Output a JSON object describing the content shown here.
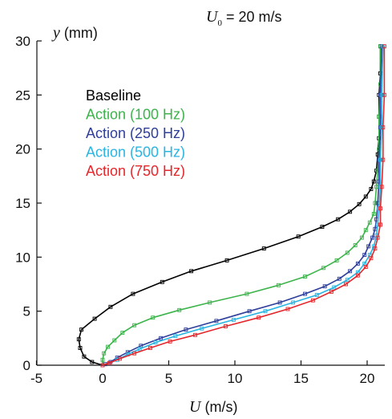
{
  "chart_data": {
    "type": "line",
    "annotation": {
      "symbol": "U",
      "subscript": "0",
      "text": " = 20 m/s"
    },
    "xlabel": {
      "symbol": "U",
      "unit": " (m/s)"
    },
    "ylabel": {
      "symbol": "y",
      "unit": " (mm)"
    },
    "xlim": [
      -5,
      22
    ],
    "ylim": [
      0,
      30
    ],
    "xticks": [
      -5,
      0,
      5,
      10,
      15,
      20
    ],
    "yticks": [
      0,
      5,
      10,
      15,
      20,
      25,
      30
    ],
    "legend_placement": "upper-left",
    "grid": false,
    "series": [
      {
        "name": "Baseline",
        "color": "#000000",
        "points": [
          [
            0,
            0
          ],
          [
            -0.8,
            0.3
          ],
          [
            -1.4,
            0.8
          ],
          [
            -1.7,
            1.6
          ],
          [
            -1.8,
            2.4
          ],
          [
            -1.6,
            3.3
          ],
          [
            -0.6,
            4.3
          ],
          [
            0.6,
            5.4
          ],
          [
            2.3,
            6.6
          ],
          [
            4.5,
            7.7
          ],
          [
            6.7,
            8.7
          ],
          [
            9.4,
            9.7
          ],
          [
            12.2,
            10.8
          ],
          [
            14.8,
            11.9
          ],
          [
            16.6,
            12.8
          ],
          [
            17.8,
            13.5
          ],
          [
            18.7,
            14.2
          ],
          [
            19.4,
            14.9
          ],
          [
            19.9,
            15.6
          ],
          [
            20.3,
            16.3
          ],
          [
            20.5,
            17
          ],
          [
            20.7,
            18
          ],
          [
            20.8,
            19.5
          ],
          [
            20.9,
            21
          ],
          [
            20.9,
            23
          ],
          [
            20.9,
            25
          ],
          [
            21,
            27
          ],
          [
            21,
            29.5
          ]
        ]
      },
      {
        "name": "Action (100 Hz)",
        "color": "#3cb44b",
        "points": [
          [
            0,
            0
          ],
          [
            0,
            0.5
          ],
          [
            0.1,
            1.1
          ],
          [
            0.4,
            1.7
          ],
          [
            0.9,
            2.3
          ],
          [
            1.5,
            3
          ],
          [
            2.4,
            3.7
          ],
          [
            3.8,
            4.4
          ],
          [
            5.8,
            5.1
          ],
          [
            8.1,
            5.8
          ],
          [
            10.9,
            6.6
          ],
          [
            13.3,
            7.4
          ],
          [
            15.3,
            8.2
          ],
          [
            16.7,
            9
          ],
          [
            17.7,
            9.7
          ],
          [
            18.5,
            10.4
          ],
          [
            19.1,
            11.1
          ],
          [
            19.6,
            11.8
          ],
          [
            19.9,
            12.5
          ],
          [
            20.2,
            13.2
          ],
          [
            20.5,
            14
          ],
          [
            20.6,
            15
          ],
          [
            20.7,
            16.5
          ],
          [
            20.8,
            18
          ],
          [
            20.9,
            20
          ],
          [
            20.9,
            23
          ],
          [
            21,
            26
          ],
          [
            21,
            29.5
          ]
        ]
      },
      {
        "name": "Action (250 Hz)",
        "color": "#2e3e9a",
        "points": [
          [
            0,
            0
          ],
          [
            0.2,
            0.1
          ],
          [
            0.6,
            0.3
          ],
          [
            1.1,
            0.7
          ],
          [
            1.9,
            1.2
          ],
          [
            2.9,
            1.8
          ],
          [
            4.4,
            2.5
          ],
          [
            6.3,
            3.3
          ],
          [
            8.6,
            4.1
          ],
          [
            11.1,
            5
          ],
          [
            13.4,
            5.8
          ],
          [
            15.3,
            6.6
          ],
          [
            16.8,
            7.3
          ],
          [
            17.9,
            8
          ],
          [
            18.7,
            8.7
          ],
          [
            19.3,
            9.4
          ],
          [
            19.8,
            10.2
          ],
          [
            20.1,
            11
          ],
          [
            20.4,
            11.8
          ],
          [
            20.6,
            12.6
          ],
          [
            20.7,
            13.5
          ],
          [
            20.8,
            15
          ],
          [
            20.9,
            17
          ],
          [
            20.9,
            19
          ],
          [
            21,
            22
          ],
          [
            21,
            25
          ],
          [
            21.1,
            29.5
          ]
        ]
      },
      {
        "name": "Action (500 Hz)",
        "color": "#29b5e3",
        "points": [
          [
            0,
            0
          ],
          [
            0.5,
            0.2
          ],
          [
            1.1,
            0.5
          ],
          [
            1.9,
            1
          ],
          [
            2.8,
            1.5
          ],
          [
            4,
            2.1
          ],
          [
            5.5,
            2.7
          ],
          [
            7.5,
            3.4
          ],
          [
            9.9,
            4.2
          ],
          [
            12.3,
            5
          ],
          [
            14.4,
            5.8
          ],
          [
            16.2,
            6.5
          ],
          [
            17.5,
            7.2
          ],
          [
            18.5,
            7.9
          ],
          [
            19.3,
            8.6
          ],
          [
            19.8,
            9.4
          ],
          [
            20.2,
            10.2
          ],
          [
            20.5,
            11
          ],
          [
            20.7,
            12
          ],
          [
            20.8,
            13
          ],
          [
            20.9,
            14.5
          ],
          [
            21,
            16.5
          ],
          [
            21,
            19
          ],
          [
            21.1,
            22
          ],
          [
            21.1,
            25
          ],
          [
            21.2,
            29.5
          ]
        ]
      },
      {
        "name": "Action (750 Hz)",
        "color": "#e6262b",
        "points": [
          [
            0,
            0
          ],
          [
            0.5,
            0.2
          ],
          [
            1.3,
            0.6
          ],
          [
            2.4,
            1.1
          ],
          [
            3.6,
            1.6
          ],
          [
            5.1,
            2.2
          ],
          [
            7,
            2.8
          ],
          [
            9.3,
            3.6
          ],
          [
            11.8,
            4.4
          ],
          [
            14,
            5.2
          ],
          [
            15.9,
            6
          ],
          [
            17.3,
            6.8
          ],
          [
            18.4,
            7.5
          ],
          [
            19.3,
            8.3
          ],
          [
            19.9,
            9.1
          ],
          [
            20.3,
            9.9
          ],
          [
            20.6,
            10.8
          ],
          [
            20.8,
            11.8
          ],
          [
            21,
            13
          ],
          [
            21,
            14.5
          ],
          [
            21.1,
            16.5
          ],
          [
            21.2,
            19
          ],
          [
            21.2,
            22
          ],
          [
            21.3,
            25
          ],
          [
            21.3,
            29.5
          ]
        ]
      }
    ]
  }
}
